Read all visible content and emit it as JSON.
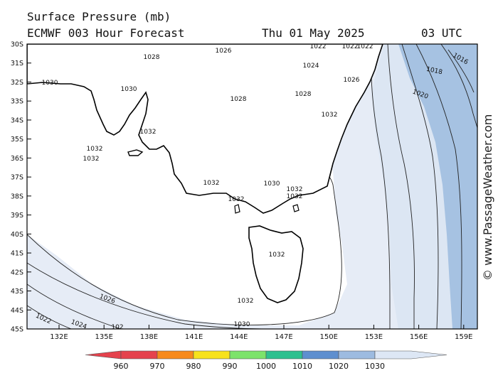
{
  "header": {
    "title": "Surface Pressure (mb)",
    "subtitle": "ECMWF 003 Hour Forecast",
    "date": "Thu 01 May 2025",
    "time": "03 UTC"
  },
  "watermark": "© www.PassageWeather.com",
  "map": {
    "lat_labels": [
      "30S",
      "31S",
      "32S",
      "33S",
      "34S",
      "35S",
      "36S",
      "37S",
      "38S",
      "39S",
      "40S",
      "41S",
      "42S",
      "43S",
      "44S",
      "45S"
    ],
    "lon_labels": [
      "132E",
      "135E",
      "138E",
      "141E",
      "144E",
      "147E",
      "150E",
      "153E",
      "156E",
      "159E"
    ],
    "isobar_labels": [
      {
        "text": "1028"
      },
      {
        "text": "1026"
      },
      {
        "text": "1022"
      },
      {
        "text": "1022"
      },
      {
        "text": "1022"
      },
      {
        "text": "1016"
      },
      {
        "text": "1018"
      },
      {
        "text": "1024"
      },
      {
        "text": "1030"
      },
      {
        "text": "1030"
      },
      {
        "text": "1026"
      },
      {
        "text": "1028"
      },
      {
        "text": "1020"
      },
      {
        "text": "1028"
      },
      {
        "text": "1032"
      },
      {
        "text": "1032"
      },
      {
        "text": "1032"
      },
      {
        "text": "1032"
      },
      {
        "text": "1030"
      },
      {
        "text": "1032"
      },
      {
        "text": "1032"
      },
      {
        "text": "1032"
      },
      {
        "text": "1032"
      },
      {
        "text": "1026"
      },
      {
        "text": "1032"
      },
      {
        "text": "1032"
      },
      {
        "text": "1022"
      },
      {
        "text": "1024"
      },
      {
        "text": "102"
      },
      {
        "text": "1030"
      }
    ]
  },
  "colorbar": {
    "labels": [
      "960",
      "970",
      "980",
      "990",
      "1000",
      "1010",
      "1020",
      "1030"
    ],
    "colors": [
      "#e5424d",
      "#f78a1c",
      "#f7e21c",
      "#7de36b",
      "#2fc08f",
      "#5e8fcf",
      "#9dbbe0",
      "#dde7f5"
    ]
  },
  "colors": {
    "bg_high": "#ffffff",
    "bg_1030": "#e6ecf6",
    "bg_1020": "#dce6f3",
    "bg_low": "#a6c2e2"
  }
}
